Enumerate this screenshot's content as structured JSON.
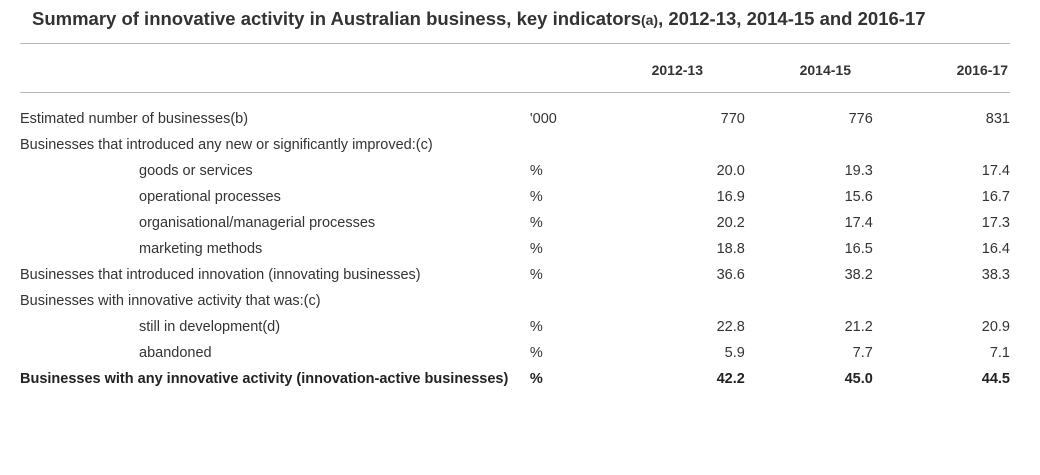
{
  "title": {
    "main": "Summary of innovative activity in Australian business, key indicators",
    "note": "(a)",
    "years": ", 2012-13, 2014-15 and 2016-17"
  },
  "columns": [
    "2012-13",
    "2014-15",
    "2016-17"
  ],
  "rows": [
    {
      "label": "Estimated number of businesses(b)",
      "unit": "'000",
      "values": [
        "770",
        "776",
        "831"
      ]
    },
    {
      "label": "Businesses that introduced any new or significantly improved:(c)",
      "unit": "",
      "values": [
        "",
        "",
        ""
      ]
    },
    {
      "label": "goods or services",
      "unit": "%",
      "values": [
        "20.0",
        "19.3",
        "17.4"
      ]
    },
    {
      "label": "operational processes",
      "unit": "%",
      "values": [
        "16.9",
        "15.6",
        "16.7"
      ]
    },
    {
      "label": "organisational/managerial processes",
      "unit": "%",
      "values": [
        "20.2",
        "17.4",
        "17.3"
      ]
    },
    {
      "label": "marketing methods",
      "unit": "%",
      "values": [
        "18.8",
        "16.5",
        "16.4"
      ]
    },
    {
      "label": "Businesses that introduced innovation (innovating businesses)",
      "unit": "%",
      "values": [
        "36.6",
        "38.2",
        "38.3"
      ]
    },
    {
      "label": "Businesses with innovative activity that was:(c)",
      "unit": "",
      "values": [
        "",
        "",
        ""
      ]
    },
    {
      "label": "still in development(d)",
      "unit": "%",
      "values": [
        "22.8",
        "21.2",
        "20.9"
      ]
    },
    {
      "label": "abandoned",
      "unit": "%",
      "values": [
        "5.9",
        "7.7",
        "7.1"
      ]
    },
    {
      "label": "Businesses with any innovative activity (innovation-active businesses)",
      "unit": "%",
      "values": [
        "42.2",
        "45.0",
        "44.5"
      ]
    }
  ]
}
